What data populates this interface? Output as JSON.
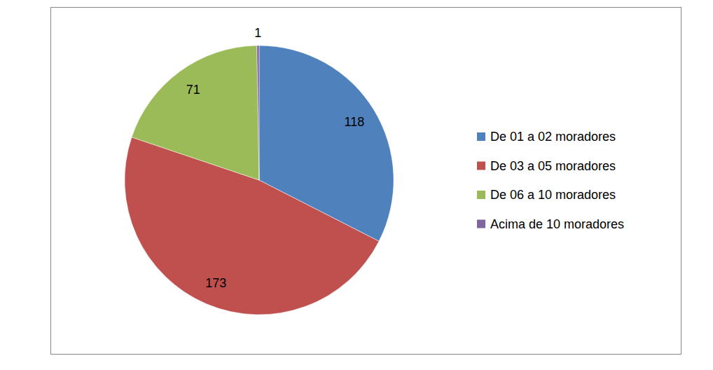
{
  "chart_data": {
    "type": "pie",
    "categories": [
      "De 01 a 02 moradores",
      "De 03 a 05 moradores",
      "De 06 a 10 moradores",
      "Acima de 10 moradores"
    ],
    "values": [
      118,
      173,
      71,
      1
    ],
    "colors": [
      "#4f81bd",
      "#c0504d",
      "#9bbb59",
      "#8064a2"
    ],
    "data_labels": true,
    "legend": "right"
  }
}
